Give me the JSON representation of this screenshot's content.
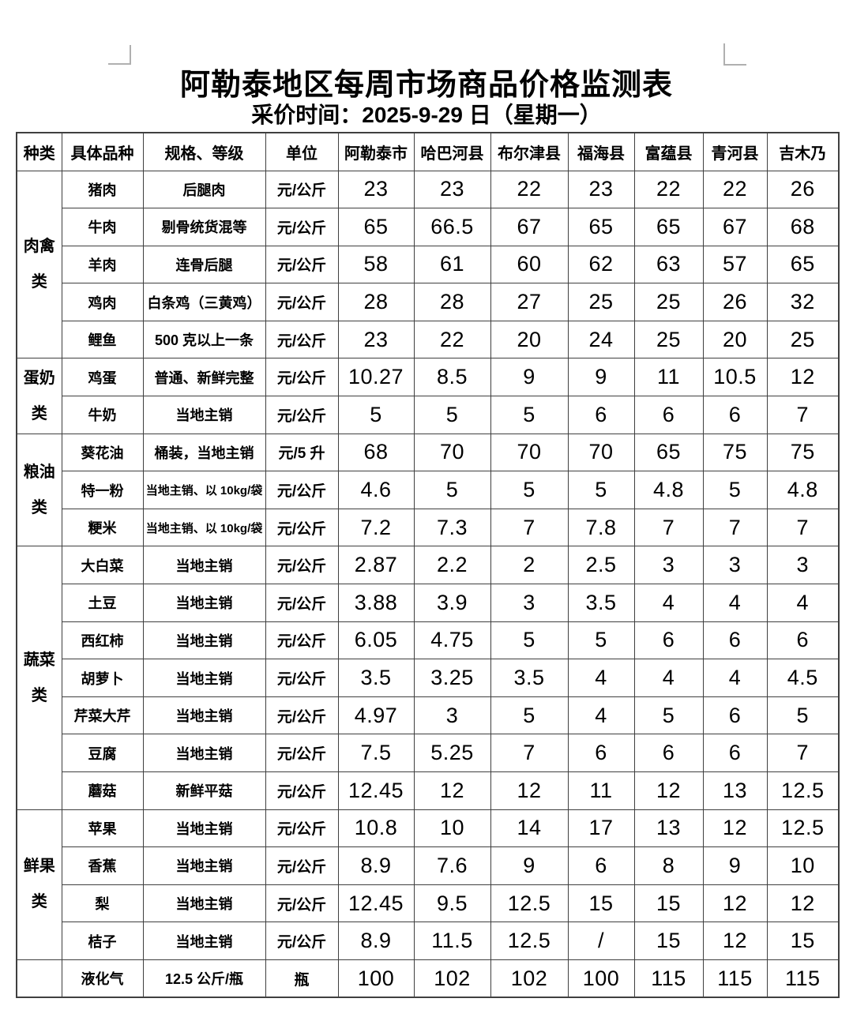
{
  "page": {
    "title": "阿勒泰地区每周市场商品价格监测表",
    "subtitle": "采价时间：2025-9-29 日（星期一）"
  },
  "table": {
    "columns": [
      "种类",
      "具体品种",
      "规格、等级",
      "单位",
      "阿勒泰市",
      "哈巴河县",
      "布尔津县",
      "福海县",
      "富蕴县",
      "青河县",
      "吉木乃"
    ],
    "groups": [
      {
        "category": "肉禽类",
        "rows": [
          {
            "item": "猪肉",
            "spec": "后腿肉",
            "unit": "元/公斤",
            "prices": [
              "23",
              "23",
              "22",
              "23",
              "22",
              "22",
              "26"
            ]
          },
          {
            "item": "牛肉",
            "spec": "剔骨统货混等",
            "unit": "元/公斤",
            "prices": [
              "65",
              "66.5",
              "67",
              "65",
              "65",
              "67",
              "68"
            ]
          },
          {
            "item": "羊肉",
            "spec": "连骨后腿",
            "unit": "元/公斤",
            "prices": [
              "58",
              "61",
              "60",
              "62",
              "63",
              "57",
              "65"
            ]
          },
          {
            "item": "鸡肉",
            "spec": "白条鸡（三黄鸡）",
            "unit": "元/公斤",
            "prices": [
              "28",
              "28",
              "27",
              "25",
              "25",
              "26",
              "32"
            ]
          },
          {
            "item": "鲤鱼",
            "spec": "500 克以上一条",
            "unit": "元/公斤",
            "prices": [
              "23",
              "22",
              "20",
              "24",
              "25",
              "20",
              "25"
            ]
          }
        ]
      },
      {
        "category": "蛋奶类",
        "rows": [
          {
            "item": "鸡蛋",
            "spec": "普通、新鲜完整",
            "unit": "元/公斤",
            "prices": [
              "10.27",
              "8.5",
              "9",
              "9",
              "11",
              "10.5",
              "12"
            ]
          },
          {
            "item": "牛奶",
            "spec": "当地主销",
            "unit": "元/公斤",
            "prices": [
              "5",
              "5",
              "5",
              "6",
              "6",
              "6",
              "7"
            ]
          }
        ]
      },
      {
        "category": "粮油类",
        "rows": [
          {
            "item": "葵花油",
            "spec": "桶装，当地主销",
            "unit": "元/5 升",
            "prices": [
              "68",
              "70",
              "70",
              "70",
              "65",
              "75",
              "75"
            ]
          },
          {
            "item": "特一粉",
            "spec": "当地主销、以 10kg/袋",
            "unit": "元/公斤",
            "prices": [
              "4.6",
              "5",
              "5",
              "5",
              "4.8",
              "5",
              "4.8"
            ]
          },
          {
            "item": "粳米",
            "spec": "当地主销、以 10kg/袋",
            "unit": "元/公斤",
            "prices": [
              "7.2",
              "7.3",
              "7",
              "7.8",
              "7",
              "7",
              "7"
            ]
          }
        ]
      },
      {
        "category": "蔬菜类",
        "rows": [
          {
            "item": "大白菜",
            "spec": "当地主销",
            "unit": "元/公斤",
            "prices": [
              "2.87",
              "2.2",
              "2",
              "2.5",
              "3",
              "3",
              "3"
            ]
          },
          {
            "item": "土豆",
            "spec": "当地主销",
            "unit": "元/公斤",
            "prices": [
              "3.88",
              "3.9",
              "3",
              "3.5",
              "4",
              "4",
              "4"
            ]
          },
          {
            "item": "西红柿",
            "spec": "当地主销",
            "unit": "元/公斤",
            "prices": [
              "6.05",
              "4.75",
              "5",
              "5",
              "6",
              "6",
              "6"
            ]
          },
          {
            "item": "胡萝卜",
            "spec": "当地主销",
            "unit": "元/公斤",
            "prices": [
              "3.5",
              "3.25",
              "3.5",
              "4",
              "4",
              "4",
              "4.5"
            ]
          },
          {
            "item": "芹菜大芹",
            "spec": "当地主销",
            "unit": "元/公斤",
            "prices": [
              "4.97",
              "3",
              "5",
              "4",
              "5",
              "6",
              "5"
            ]
          },
          {
            "item": "豆腐",
            "spec": "当地主销",
            "unit": "元/公斤",
            "prices": [
              "7.5",
              "5.25",
              "7",
              "6",
              "6",
              "6",
              "7"
            ]
          },
          {
            "item": "蘑菇",
            "spec": "新鲜平菇",
            "unit": "元/公斤",
            "prices": [
              "12.45",
              "12",
              "12",
              "11",
              "12",
              "13",
              "12.5"
            ]
          }
        ]
      },
      {
        "category": "鲜果类",
        "rows": [
          {
            "item": "苹果",
            "spec": "当地主销",
            "unit": "元/公斤",
            "prices": [
              "10.8",
              "10",
              "14",
              "17",
              "13",
              "12",
              "12.5"
            ]
          },
          {
            "item": "香蕉",
            "spec": "当地主销",
            "unit": "元/公斤",
            "prices": [
              "8.9",
              "7.6",
              "9",
              "6",
              "8",
              "9",
              "10"
            ]
          },
          {
            "item": "梨",
            "spec": "当地主销",
            "unit": "元/公斤",
            "prices": [
              "12.45",
              "9.5",
              "12.5",
              "15",
              "15",
              "12",
              "12"
            ]
          },
          {
            "item": "桔子",
            "spec": "当地主销",
            "unit": "元/公斤",
            "prices": [
              "8.9",
              "11.5",
              "12.5",
              "/",
              "15",
              "12",
              "15"
            ]
          }
        ]
      },
      {
        "category": "",
        "rows": [
          {
            "item": "液化气",
            "spec": "12.5 公斤/瓶",
            "unit": "瓶",
            "prices": [
              "100",
              "102",
              "102",
              "100",
              "115",
              "115",
              "115"
            ]
          }
        ]
      }
    ]
  }
}
